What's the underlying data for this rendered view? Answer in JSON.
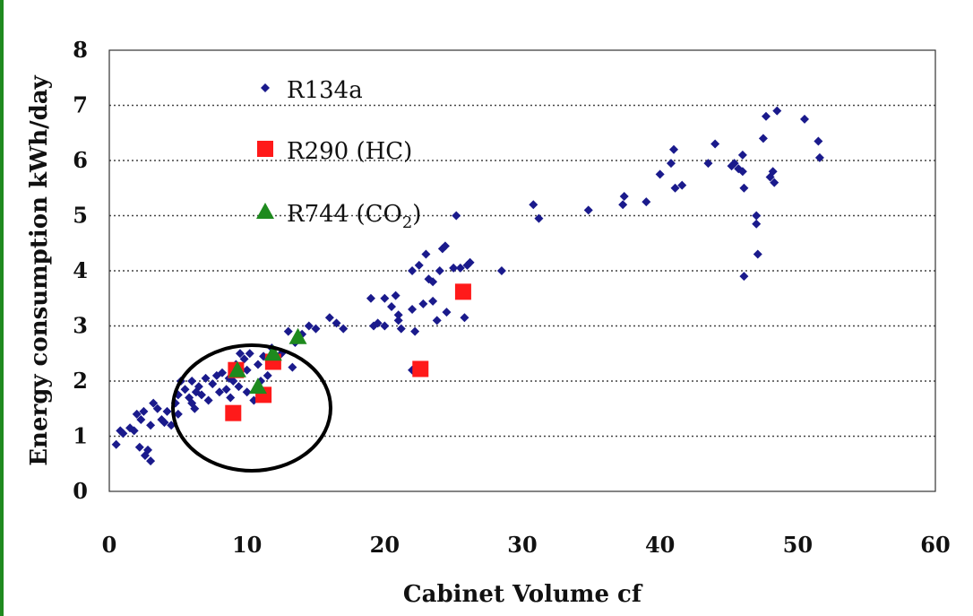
{
  "chart_data": {
    "type": "scatter",
    "title": "",
    "xlabel": "Cabinet Volume cf",
    "ylabel": "Energy consumption kWh/day",
    "xlim": [
      0,
      60
    ],
    "ylim": [
      0,
      8
    ],
    "xticks": [
      "0",
      "10",
      "20",
      "30",
      "40",
      "50",
      "60"
    ],
    "yticks": [
      "0",
      "1",
      "2",
      "3",
      "4",
      "5",
      "6",
      "7",
      "8"
    ],
    "grid": "horizontal dotted",
    "legend_position": "top-left",
    "annotation": "circle around R290 / R744 points near 10 cf",
    "series": [
      {
        "name": "R134a",
        "marker": "diamond",
        "color": "#1a1a8c",
        "points": [
          [
            0.5,
            0.85
          ],
          [
            0.8,
            1.1
          ],
          [
            1.0,
            1.05
          ],
          [
            1.5,
            1.15
          ],
          [
            1.8,
            1.1
          ],
          [
            2.0,
            1.4
          ],
          [
            2.2,
            0.8
          ],
          [
            2.3,
            1.3
          ],
          [
            2.5,
            1.45
          ],
          [
            2.6,
            0.65
          ],
          [
            2.8,
            0.75
          ],
          [
            3.0,
            0.55
          ],
          [
            3.0,
            1.2
          ],
          [
            3.2,
            1.6
          ],
          [
            3.5,
            1.5
          ],
          [
            3.8,
            1.3
          ],
          [
            4.0,
            1.25
          ],
          [
            4.2,
            1.45
          ],
          [
            4.5,
            1.2
          ],
          [
            4.8,
            1.6
          ],
          [
            5.0,
            1.75
          ],
          [
            5.0,
            1.4
          ],
          [
            5.2,
            2.0
          ],
          [
            5.5,
            1.85
          ],
          [
            5.8,
            1.7
          ],
          [
            6.0,
            2.0
          ],
          [
            6.0,
            1.6
          ],
          [
            6.2,
            1.5
          ],
          [
            6.3,
            1.8
          ],
          [
            6.5,
            1.9
          ],
          [
            6.7,
            1.75
          ],
          [
            7.0,
            2.05
          ],
          [
            7.2,
            1.65
          ],
          [
            7.5,
            1.95
          ],
          [
            7.8,
            2.1
          ],
          [
            8.0,
            1.8
          ],
          [
            8.2,
            2.15
          ],
          [
            8.5,
            1.85
          ],
          [
            8.7,
            2.05
          ],
          [
            8.8,
            1.7
          ],
          [
            9.0,
            2.0
          ],
          [
            9.2,
            2.3
          ],
          [
            9.4,
            1.9
          ],
          [
            9.5,
            2.5
          ],
          [
            9.6,
            2.2
          ],
          [
            9.8,
            2.4
          ],
          [
            10.0,
            2.2
          ],
          [
            10.0,
            1.8
          ],
          [
            10.2,
            2.5
          ],
          [
            10.5,
            1.65
          ],
          [
            10.8,
            2.3
          ],
          [
            11.0,
            2.0
          ],
          [
            11.2,
            2.45
          ],
          [
            11.5,
            2.1
          ],
          [
            11.8,
            2.6
          ],
          [
            12.0,
            2.3
          ],
          [
            12.5,
            2.5
          ],
          [
            13.0,
            2.9
          ],
          [
            13.3,
            2.25
          ],
          [
            13.5,
            2.7
          ],
          [
            14.0,
            2.85
          ],
          [
            14.5,
            3.0
          ],
          [
            15.0,
            2.95
          ],
          [
            16.0,
            3.15
          ],
          [
            16.5,
            3.05
          ],
          [
            17.0,
            2.95
          ],
          [
            19.0,
            3.5
          ],
          [
            19.2,
            3.0
          ],
          [
            19.5,
            3.05
          ],
          [
            20.0,
            3.0
          ],
          [
            20.0,
            3.5
          ],
          [
            20.5,
            3.35
          ],
          [
            20.8,
            3.55
          ],
          [
            21.0,
            3.1
          ],
          [
            21.0,
            3.2
          ],
          [
            21.2,
            2.95
          ],
          [
            22.0,
            4.0
          ],
          [
            22.0,
            3.3
          ],
          [
            22.0,
            2.2
          ],
          [
            22.2,
            2.9
          ],
          [
            22.5,
            4.1
          ],
          [
            22.8,
            3.4
          ],
          [
            23.0,
            4.3
          ],
          [
            23.2,
            3.85
          ],
          [
            23.5,
            3.8
          ],
          [
            23.5,
            3.45
          ],
          [
            23.8,
            3.1
          ],
          [
            24.0,
            4.0
          ],
          [
            24.2,
            4.4
          ],
          [
            24.4,
            4.45
          ],
          [
            24.5,
            3.25
          ],
          [
            25.0,
            4.05
          ],
          [
            25.2,
            5.0
          ],
          [
            25.5,
            4.05
          ],
          [
            25.8,
            3.15
          ],
          [
            26.0,
            4.1
          ],
          [
            26.2,
            4.15
          ],
          [
            28.5,
            4.0
          ],
          [
            30.8,
            5.2
          ],
          [
            31.2,
            4.95
          ],
          [
            34.8,
            5.1
          ],
          [
            37.3,
            5.2
          ],
          [
            37.4,
            5.35
          ],
          [
            39.0,
            5.25
          ],
          [
            40.0,
            5.75
          ],
          [
            40.8,
            5.95
          ],
          [
            41.0,
            6.2
          ],
          [
            41.1,
            5.5
          ],
          [
            41.6,
            5.55
          ],
          [
            43.5,
            5.95
          ],
          [
            44.0,
            6.3
          ],
          [
            45.2,
            5.9
          ],
          [
            45.4,
            5.95
          ],
          [
            45.7,
            5.85
          ],
          [
            46.0,
            6.1
          ],
          [
            46.0,
            5.8
          ],
          [
            46.1,
            5.5
          ],
          [
            46.1,
            3.9
          ],
          [
            47.0,
            5.0
          ],
          [
            47.0,
            4.85
          ],
          [
            47.1,
            4.3
          ],
          [
            47.5,
            6.4
          ],
          [
            47.7,
            6.8
          ],
          [
            48.0,
            5.7
          ],
          [
            48.2,
            5.8
          ],
          [
            48.3,
            5.6
          ],
          [
            48.5,
            6.9
          ],
          [
            50.5,
            6.75
          ],
          [
            51.5,
            6.35
          ],
          [
            51.6,
            6.05
          ]
        ]
      },
      {
        "name": "R290 (HC)",
        "marker": "square",
        "color": "#ff1a1a",
        "points": [
          [
            9.0,
            1.42
          ],
          [
            9.2,
            2.2
          ],
          [
            11.2,
            1.75
          ],
          [
            11.9,
            2.35
          ],
          [
            22.6,
            2.22
          ],
          [
            25.7,
            3.62
          ]
        ]
      },
      {
        "name": "R744 (CO2)",
        "marker": "triangle",
        "color": "#1e8a1e",
        "points": [
          [
            9.3,
            2.2
          ],
          [
            10.8,
            1.9
          ],
          [
            11.9,
            2.5
          ],
          [
            13.7,
            2.8
          ]
        ]
      }
    ]
  },
  "legend": [
    {
      "label": "R134a",
      "sub": ""
    },
    {
      "label": "R290 (HC)",
      "sub": ""
    },
    {
      "label": "R744 (CO",
      "sub": "2",
      "tail": ")"
    }
  ],
  "colors": {
    "border": "#1f8a1f",
    "r134a": "#1a1a8c",
    "r290": "#ff1a1a",
    "r744": "#1e8a1e"
  }
}
